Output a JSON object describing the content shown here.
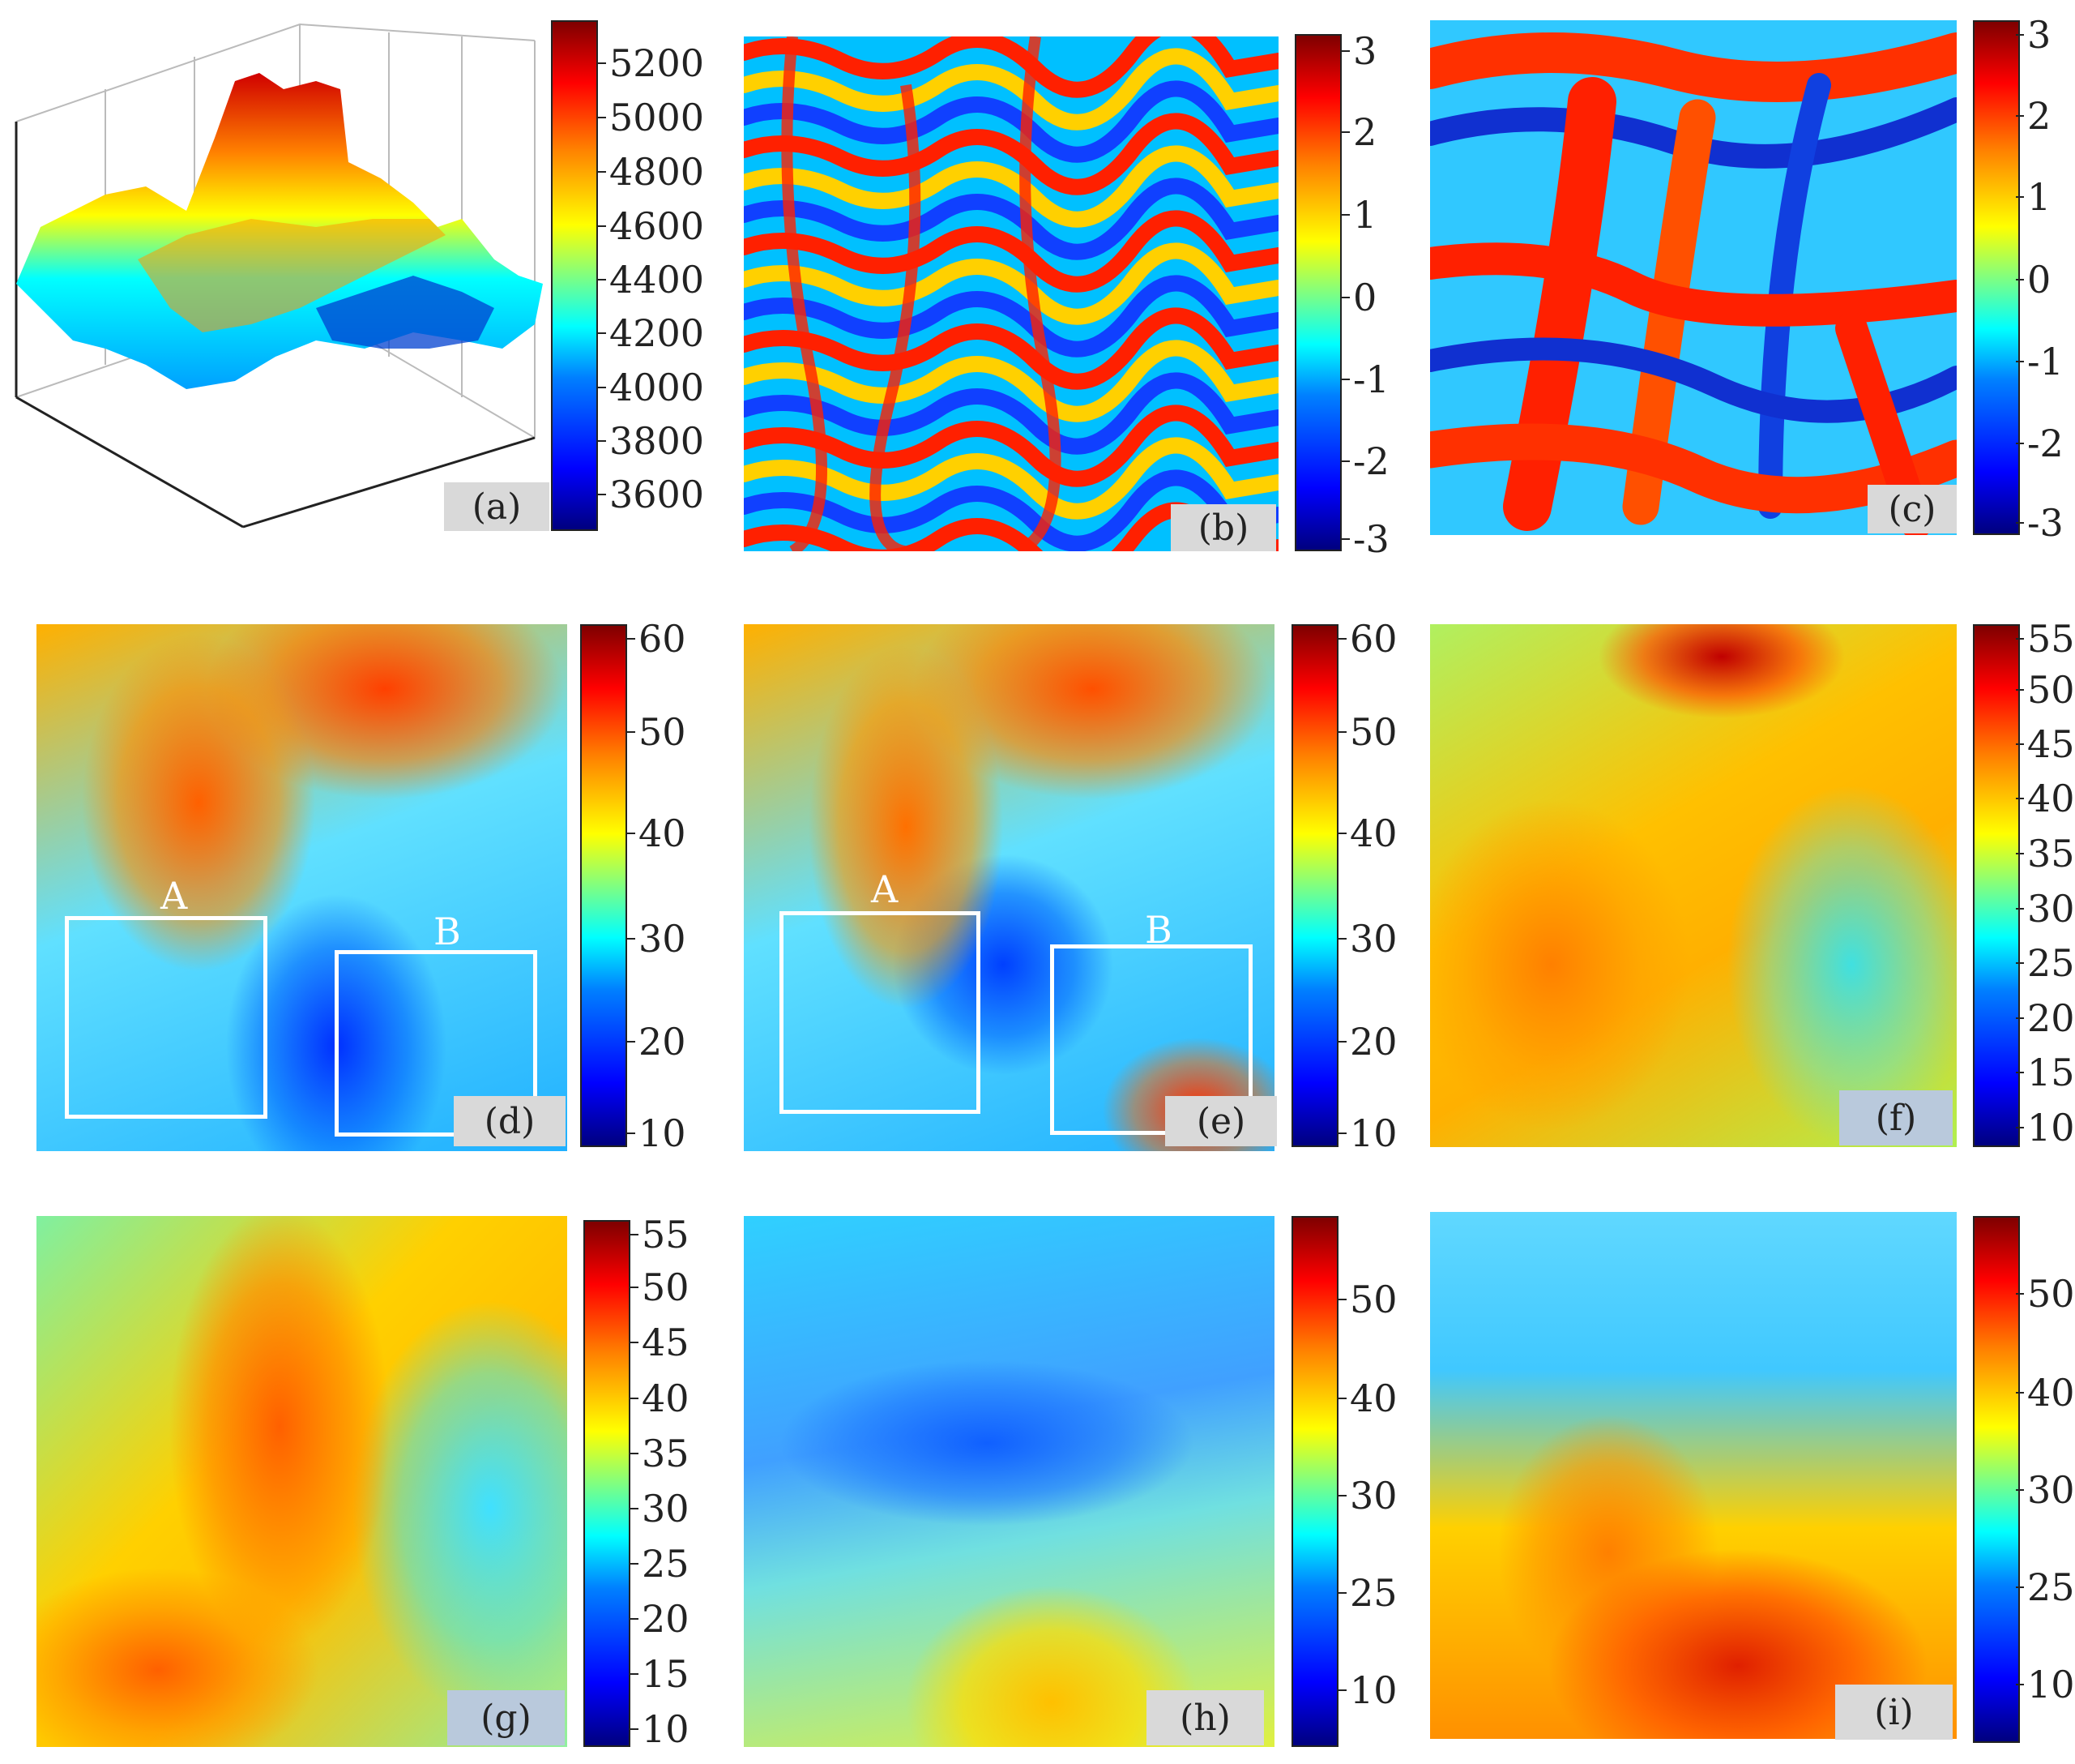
{
  "colormap": [
    "#00007f",
    "#0000ff",
    "#0080ff",
    "#00ffff",
    "#80ff80",
    "#ffff00",
    "#ff8000",
    "#ff0000",
    "#7f0000"
  ],
  "panels": {
    "a": {
      "label": "(a)",
      "colorbar": [
        "5200",
        "5000",
        "4800",
        "4600",
        "4400",
        "4200",
        "4000",
        "3800",
        "3600"
      ]
    },
    "b": {
      "label": "(b)",
      "colorbar": [
        "3",
        "2",
        "1",
        "0",
        "-1",
        "-2",
        "-3"
      ]
    },
    "c": {
      "label": "(c)",
      "colorbar": [
        "3",
        "2",
        "1",
        "0",
        "-1",
        "-2",
        "-3"
      ]
    },
    "d": {
      "label": "(d)",
      "colorbar": [
        "60",
        "50",
        "40",
        "30",
        "20",
        "10"
      ],
      "box_a": "A",
      "box_b": "B"
    },
    "e": {
      "label": "(e)",
      "colorbar": [
        "60",
        "50",
        "40",
        "30",
        "20",
        "10"
      ],
      "box_a": "A",
      "box_b": "B"
    },
    "f": {
      "label": "(f)",
      "colorbar": [
        "55",
        "50",
        "45",
        "40",
        "35",
        "30",
        "25",
        "20",
        "15",
        "10"
      ]
    },
    "g": {
      "label": "(g)",
      "colorbar": [
        "55",
        "50",
        "45",
        "40",
        "35",
        "30",
        "25",
        "20",
        "15",
        "10"
      ]
    },
    "h": {
      "label": "(h)",
      "colorbar": [
        "50",
        "40",
        "30",
        "25",
        "10"
      ]
    },
    "i": {
      "label": "(i)",
      "colorbar": [
        "50",
        "40",
        "30",
        "25",
        "10"
      ]
    }
  }
}
